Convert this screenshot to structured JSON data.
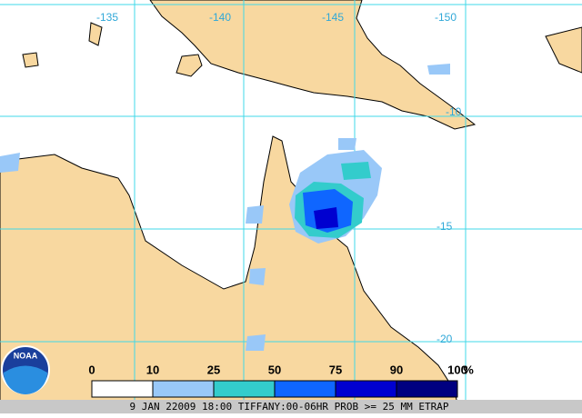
{
  "map": {
    "longitude_labels": [
      "-135",
      "-140",
      "-145",
      "-150"
    ],
    "latitude_labels": [
      "-10",
      "-15",
      "-20"
    ],
    "logo": "NOAA",
    "legend": {
      "labels": [
        "0",
        "10",
        "25",
        "50",
        "75",
        "90",
        "100"
      ],
      "unit": "%",
      "colors": [
        "#ffffff",
        "#99c8f8",
        "#33cccc",
        "#0f66ff",
        "#0000d0",
        "#000080"
      ]
    },
    "footer": "9 JAN 22009 18:00 TIFFANY:00-06HR PROB >= 25 MM ETRAP"
  }
}
